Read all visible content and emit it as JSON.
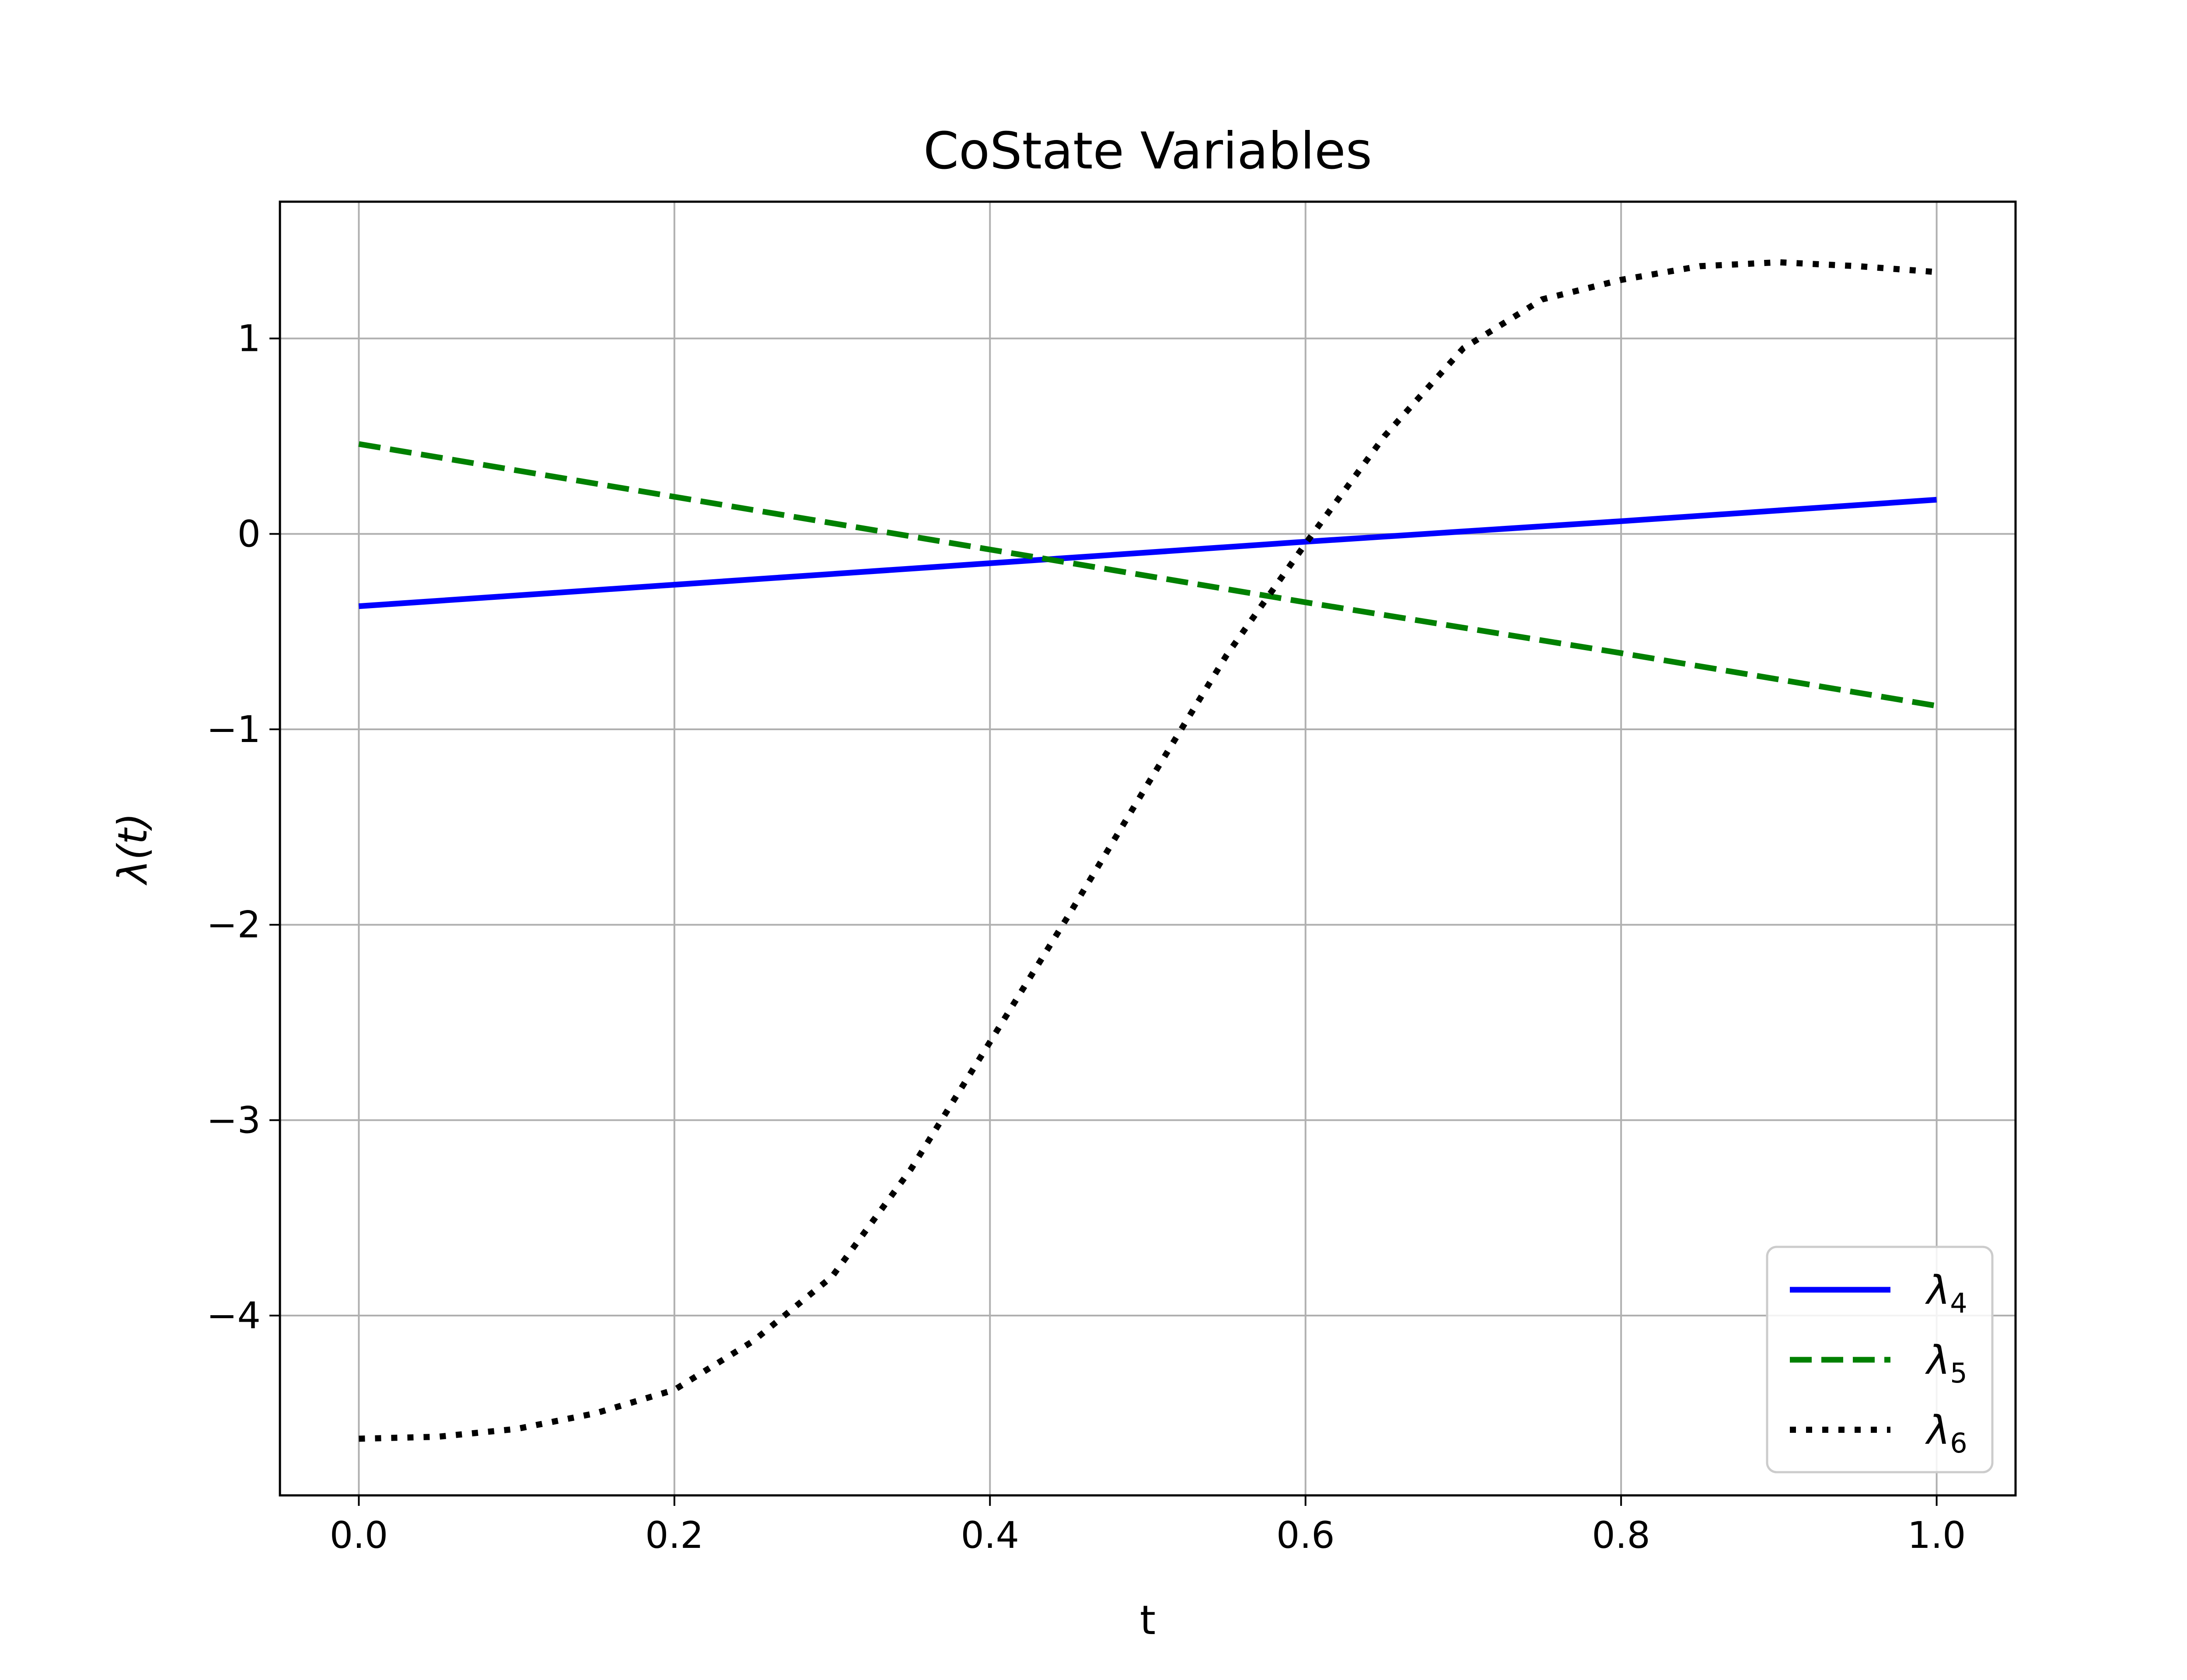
{
  "chart_data": {
    "type": "line",
    "title": "CoState Variables",
    "xlabel": "t",
    "ylabel": "λ(t)",
    "xlim": [
      -0.05,
      1.05
    ],
    "ylim": [
      -4.92,
      1.7
    ],
    "xticks": [
      0.0,
      0.2,
      0.4,
      0.6,
      0.8,
      1.0
    ],
    "xtick_labels": [
      "0.0",
      "0.2",
      "0.4",
      "0.6",
      "0.8",
      "1.0"
    ],
    "yticks": [
      1,
      0,
      -1,
      -2,
      -3,
      -4
    ],
    "ytick_labels": [
      "1",
      "0",
      "−1",
      "−2",
      "−3",
      "−4"
    ],
    "grid": true,
    "legend_position": "lower-right",
    "series": [
      {
        "name": "λ4",
        "color": "#0000ff",
        "style": "solid",
        "x": [
          0.0,
          0.2,
          0.4,
          0.6,
          0.8,
          1.0
        ],
        "y": [
          -0.37,
          -0.26,
          -0.15,
          -0.04,
          0.065,
          0.175
        ]
      },
      {
        "name": "λ5",
        "color": "#008000",
        "style": "dashed",
        "x": [
          0.0,
          0.2,
          0.4,
          0.6,
          0.8,
          1.0
        ],
        "y": [
          0.46,
          0.19,
          -0.08,
          -0.35,
          -0.61,
          -0.88
        ]
      },
      {
        "name": "λ6",
        "color": "#000000",
        "style": "dotted",
        "x": [
          0.0,
          0.05,
          0.1,
          0.15,
          0.2,
          0.25,
          0.3,
          0.35,
          0.4,
          0.45,
          0.5,
          0.55,
          0.6,
          0.65,
          0.7,
          0.75,
          0.8,
          0.85,
          0.9,
          0.95,
          1.0
        ],
        "y": [
          -4.63,
          -4.62,
          -4.58,
          -4.5,
          -4.38,
          -4.13,
          -3.8,
          -3.25,
          -2.6,
          -1.95,
          -1.28,
          -0.62,
          -0.05,
          0.5,
          0.95,
          1.2,
          1.3,
          1.37,
          1.39,
          1.37,
          1.34
        ]
      }
    ]
  }
}
